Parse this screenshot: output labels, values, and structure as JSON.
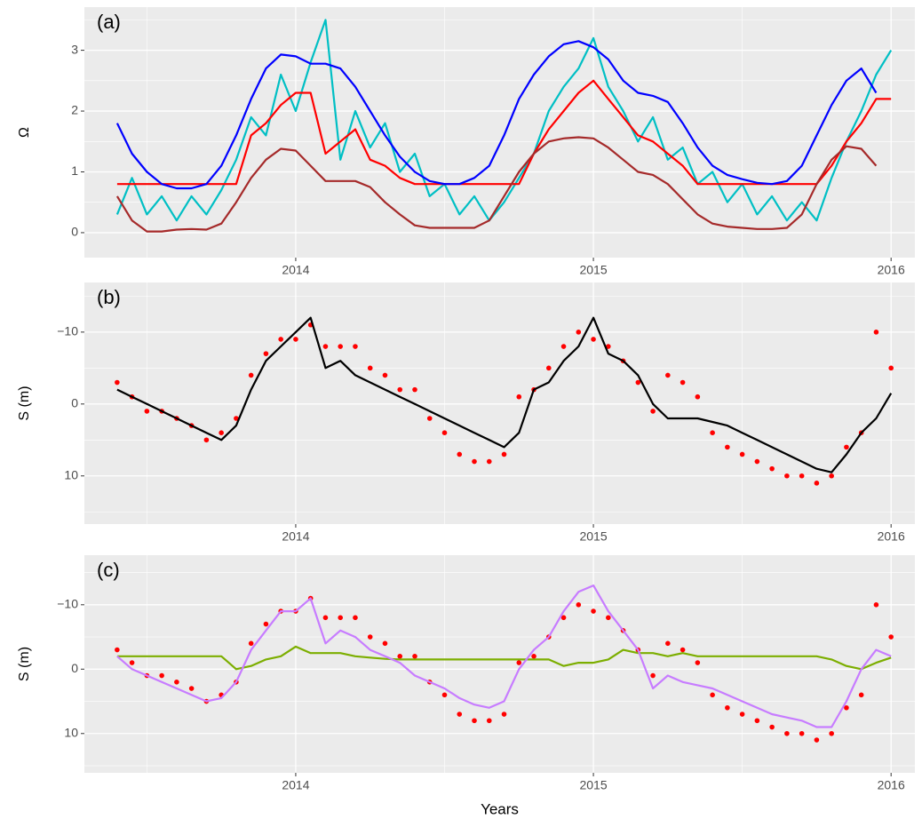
{
  "chart_data": [
    {
      "type": "line",
      "label": "(a)",
      "ylabel": "Ω",
      "xlim": [
        2013.29,
        2016.08
      ],
      "xticks": [
        2014,
        2015,
        2016
      ],
      "ylim": [
        -0.41,
        3.71
      ],
      "yticks": [
        0,
        1,
        2,
        3
      ],
      "grid": true,
      "x": [
        2013.4,
        2013.45,
        2013.5,
        2013.55,
        2013.6,
        2013.65,
        2013.7,
        2013.75,
        2013.8,
        2013.85,
        2013.9,
        2013.95,
        2014.0,
        2014.05,
        2014.1,
        2014.15,
        2014.2,
        2014.25,
        2014.3,
        2014.35,
        2014.4,
        2014.45,
        2014.5,
        2014.55,
        2014.6,
        2014.65,
        2014.7,
        2014.75,
        2014.8,
        2014.85,
        2014.9,
        2014.95,
        2015.0,
        2015.05,
        2015.1,
        2015.15,
        2015.2,
        2015.25,
        2015.3,
        2015.35,
        2015.4,
        2015.45,
        2015.5,
        2015.55,
        2015.6,
        2015.65,
        2015.7,
        2015.75,
        2015.8,
        2015.85,
        2015.9,
        2015.95,
        2016.0
      ],
      "series": [
        {
          "color": "#00bfc4",
          "values": [
            0.3,
            0.9,
            0.3,
            0.6,
            0.2,
            0.6,
            0.3,
            0.7,
            1.2,
            1.9,
            1.6,
            2.6,
            2.0,
            2.8,
            3.5,
            1.2,
            2.0,
            1.4,
            1.8,
            1.0,
            1.3,
            0.6,
            0.8,
            0.3,
            0.6,
            0.2,
            0.5,
            0.9,
            1.3,
            2.0,
            2.4,
            2.7,
            3.2,
            2.4,
            2.0,
            1.5,
            1.9,
            1.2,
            1.4,
            0.8,
            1.0,
            0.5,
            0.8,
            0.3,
            0.6,
            0.2,
            0.5,
            0.2,
            0.9,
            1.5,
            2.0,
            2.6,
            3.0
          ]
        },
        {
          "color": "#ff0000",
          "values": [
            0.8,
            0.8,
            0.8,
            0.8,
            0.8,
            0.8,
            0.8,
            0.8,
            0.8,
            1.6,
            1.8,
            2.1,
            2.3,
            2.3,
            1.3,
            1.5,
            1.7,
            1.2,
            1.1,
            0.9,
            0.8,
            0.8,
            0.8,
            0.8,
            0.8,
            0.8,
            0.8,
            0.8,
            1.3,
            1.7,
            2.0,
            2.3,
            2.5,
            2.2,
            1.9,
            1.6,
            1.5,
            1.3,
            1.1,
            0.8,
            0.8,
            0.8,
            0.8,
            0.8,
            0.8,
            0.8,
            0.8,
            0.8,
            1.1,
            1.5,
            1.8,
            2.2,
            2.2
          ]
        },
        {
          "color": "#0000ff",
          "values": [
            1.8,
            1.3,
            1.0,
            0.8,
            0.73,
            0.73,
            0.8,
            1.1,
            1.6,
            2.2,
            2.7,
            2.93,
            2.9,
            2.78,
            2.78,
            2.7,
            2.4,
            2.0,
            1.6,
            1.25,
            1.0,
            0.85,
            0.8,
            0.8,
            0.9,
            1.1,
            1.6,
            2.2,
            2.6,
            2.9,
            3.1,
            3.15,
            3.05,
            2.85,
            2.5,
            2.3,
            2.25,
            2.15,
            1.8,
            1.4,
            1.1,
            0.95,
            0.88,
            0.82,
            0.8,
            0.85,
            1.1,
            1.6,
            2.1,
            2.5,
            2.7,
            2.3,
            null
          ]
        },
        {
          "color": "#a52a2a",
          "values": [
            0.6,
            0.2,
            0.02,
            0.02,
            0.05,
            0.06,
            0.05,
            0.15,
            0.5,
            0.9,
            1.2,
            1.38,
            1.35,
            1.1,
            0.85,
            0.85,
            0.85,
            0.75,
            0.5,
            0.3,
            0.12,
            0.08,
            0.08,
            0.08,
            0.08,
            0.2,
            0.6,
            1.0,
            1.3,
            1.5,
            1.55,
            1.57,
            1.55,
            1.4,
            1.2,
            1.0,
            0.95,
            0.8,
            0.55,
            0.3,
            0.15,
            0.1,
            0.08,
            0.06,
            0.06,
            0.08,
            0.3,
            0.8,
            1.2,
            1.42,
            1.38,
            1.1,
            null
          ]
        }
      ]
    },
    {
      "type": "line",
      "label": "(b)",
      "ylabel": "S (m)",
      "xlim": [
        2013.29,
        2016.08
      ],
      "xticks": [
        2014,
        2015,
        2016
      ],
      "ylim": [
        16.7,
        -16.9
      ],
      "yticks": [
        {
          "value": -10,
          "label": "−10"
        },
        0,
        10
      ],
      "grid": true,
      "x": [
        2013.4,
        2013.45,
        2013.5,
        2013.55,
        2013.6,
        2013.65,
        2013.7,
        2013.75,
        2013.8,
        2013.85,
        2013.9,
        2013.95,
        2014.0,
        2014.05,
        2014.1,
        2014.15,
        2014.2,
        2014.25,
        2014.3,
        2014.35,
        2014.4,
        2014.45,
        2014.5,
        2014.55,
        2014.6,
        2014.65,
        2014.7,
        2014.75,
        2014.8,
        2014.85,
        2014.9,
        2014.95,
        2015.0,
        2015.05,
        2015.1,
        2015.15,
        2015.2,
        2015.25,
        2015.3,
        2015.35,
        2015.4,
        2015.45,
        2015.5,
        2015.55,
        2015.6,
        2015.65,
        2015.7,
        2015.75,
        2015.8,
        2015.85,
        2015.9,
        2015.95,
        2016.0
      ],
      "series": [
        {
          "type": "scatter",
          "color": "#ff0000",
          "values": [
            -3,
            -1,
            1,
            1,
            2,
            3,
            5,
            4,
            2,
            -4,
            -7,
            -9,
            -9,
            -11,
            -8,
            -8,
            -8,
            -5,
            -4,
            -2,
            -2,
            2,
            4,
            7,
            8,
            8,
            7,
            -1,
            -2,
            -5,
            -8,
            -10,
            -9,
            -8,
            -6,
            -3,
            1,
            -4,
            -3,
            -1,
            4,
            6,
            7,
            8,
            9,
            10,
            10,
            11,
            10,
            6,
            4,
            -10,
            -5
          ]
        },
        {
          "color": "#000000",
          "values": [
            -2,
            -1,
            0,
            1,
            2,
            3,
            4,
            5,
            3,
            -2,
            -6,
            -8,
            -10,
            -12,
            -5,
            -6,
            -4,
            -3,
            -2,
            -1,
            0,
            1,
            2,
            3,
            4,
            5,
            6,
            4,
            -2,
            -3,
            -6,
            -8,
            -12,
            -7,
            -6,
            -4,
            0,
            2,
            2,
            2,
            2.5,
            3,
            4,
            5,
            6,
            7,
            8,
            9,
            9.5,
            7,
            4,
            2,
            -1.5
          ]
        }
      ]
    },
    {
      "type": "line",
      "label": "(c)",
      "ylabel": "S (m)",
      "xlabel": "Years",
      "xlim": [
        2013.29,
        2016.08
      ],
      "xticks": [
        2014,
        2015,
        2016
      ],
      "ylim": [
        16.1,
        -17.7
      ],
      "yticks": [
        {
          "value": -10,
          "label": "−10"
        },
        0,
        10
      ],
      "grid": true,
      "x": [
        2013.4,
        2013.45,
        2013.5,
        2013.55,
        2013.6,
        2013.65,
        2013.7,
        2013.75,
        2013.8,
        2013.85,
        2013.9,
        2013.95,
        2014.0,
        2014.05,
        2014.1,
        2014.15,
        2014.2,
        2014.25,
        2014.3,
        2014.35,
        2014.4,
        2014.45,
        2014.5,
        2014.55,
        2014.6,
        2014.65,
        2014.7,
        2014.75,
        2014.8,
        2014.85,
        2014.9,
        2014.95,
        2015.0,
        2015.05,
        2015.1,
        2015.15,
        2015.2,
        2015.25,
        2015.3,
        2015.35,
        2015.4,
        2015.45,
        2015.5,
        2015.55,
        2015.6,
        2015.65,
        2015.7,
        2015.75,
        2015.8,
        2015.85,
        2015.9,
        2015.95,
        2016.0
      ],
      "series": [
        {
          "type": "scatter",
          "color": "#ff0000",
          "values": [
            -3,
            -1,
            1,
            1,
            2,
            3,
            5,
            4,
            2,
            -4,
            -7,
            -9,
            -9,
            -11,
            -8,
            -8,
            -8,
            -5,
            -4,
            -2,
            -2,
            2,
            4,
            7,
            8,
            8,
            7,
            -1,
            -2,
            -5,
            -8,
            -10,
            -9,
            -8,
            -6,
            -3,
            1,
            -4,
            -3,
            -1,
            4,
            6,
            7,
            8,
            9,
            10,
            10,
            11,
            10,
            6,
            4,
            -10,
            -5
          ]
        },
        {
          "color": "#7cae00",
          "values": [
            -2,
            -2,
            -2,
            -2,
            -2,
            -2,
            -2,
            -2,
            0,
            -0.5,
            -1.5,
            -2,
            -3.5,
            -2.5,
            -2.5,
            -2.5,
            -2,
            -1.8,
            -1.6,
            -1.5,
            -1.5,
            -1.5,
            -1.5,
            -1.5,
            -1.5,
            -1.5,
            -1.5,
            -1.5,
            -1.5,
            -1.5,
            -0.5,
            -1,
            -1,
            -1.5,
            -3,
            -2.5,
            -2.5,
            -2,
            -2.5,
            -2,
            -2,
            -2,
            -2,
            -2,
            -2,
            -2,
            -2,
            -2,
            -1.5,
            -0.5,
            0,
            -1,
            -1.8
          ]
        },
        {
          "color": "#c77cff",
          "values": [
            -2,
            0,
            1,
            2,
            3,
            4,
            5,
            4.5,
            2,
            -3,
            -6,
            -9,
            -9,
            -11,
            -4,
            -6,
            -5,
            -3,
            -2,
            -1,
            1,
            2,
            3,
            4.5,
            5.5,
            6,
            5,
            0,
            -3,
            -5,
            -9,
            -12,
            -13,
            -9,
            -6,
            -3,
            3,
            1,
            2,
            2.5,
            3,
            4,
            5,
            6,
            7,
            7.5,
            8,
            9,
            9,
            5,
            0,
            -3,
            -2
          ]
        }
      ]
    }
  ]
}
